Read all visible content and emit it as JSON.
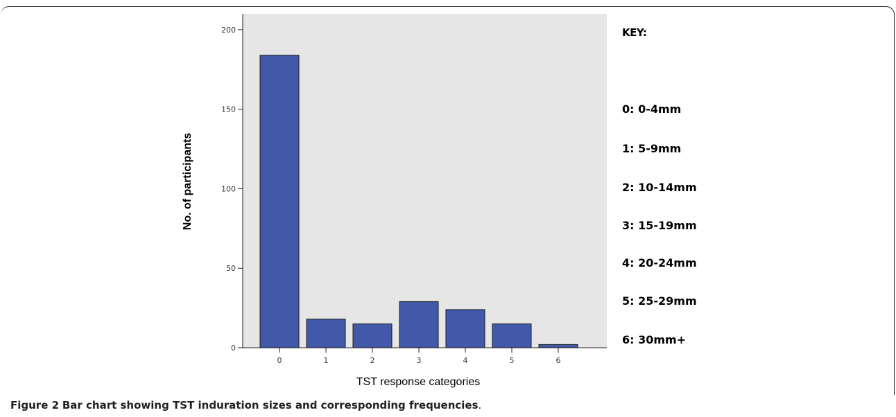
{
  "chart_data": {
    "type": "bar",
    "categories": [
      "0",
      "1",
      "2",
      "3",
      "4",
      "5",
      "6"
    ],
    "values": [
      184,
      18,
      15,
      29,
      24,
      15,
      2
    ],
    "xlabel": "TST response categories",
    "ylabel": "No. of participants",
    "ylim": [
      0,
      210
    ],
    "yticks": [
      0,
      50,
      100,
      150,
      200
    ],
    "grid": false,
    "bar_color": "#4159a8",
    "plot_background": "#e6e6e6"
  },
  "key": {
    "title": "KEY:",
    "items": [
      "0: 0-4mm",
      "1: 5-9mm",
      "2: 10-14mm",
      "3: 15-19mm",
      "4: 20-24mm",
      "5: 25-29mm",
      "6: 30mm+"
    ]
  },
  "caption": {
    "label": "Figure 2",
    "text": "Bar chart showing TST induration sizes and corresponding frequencies",
    "end": "."
  }
}
